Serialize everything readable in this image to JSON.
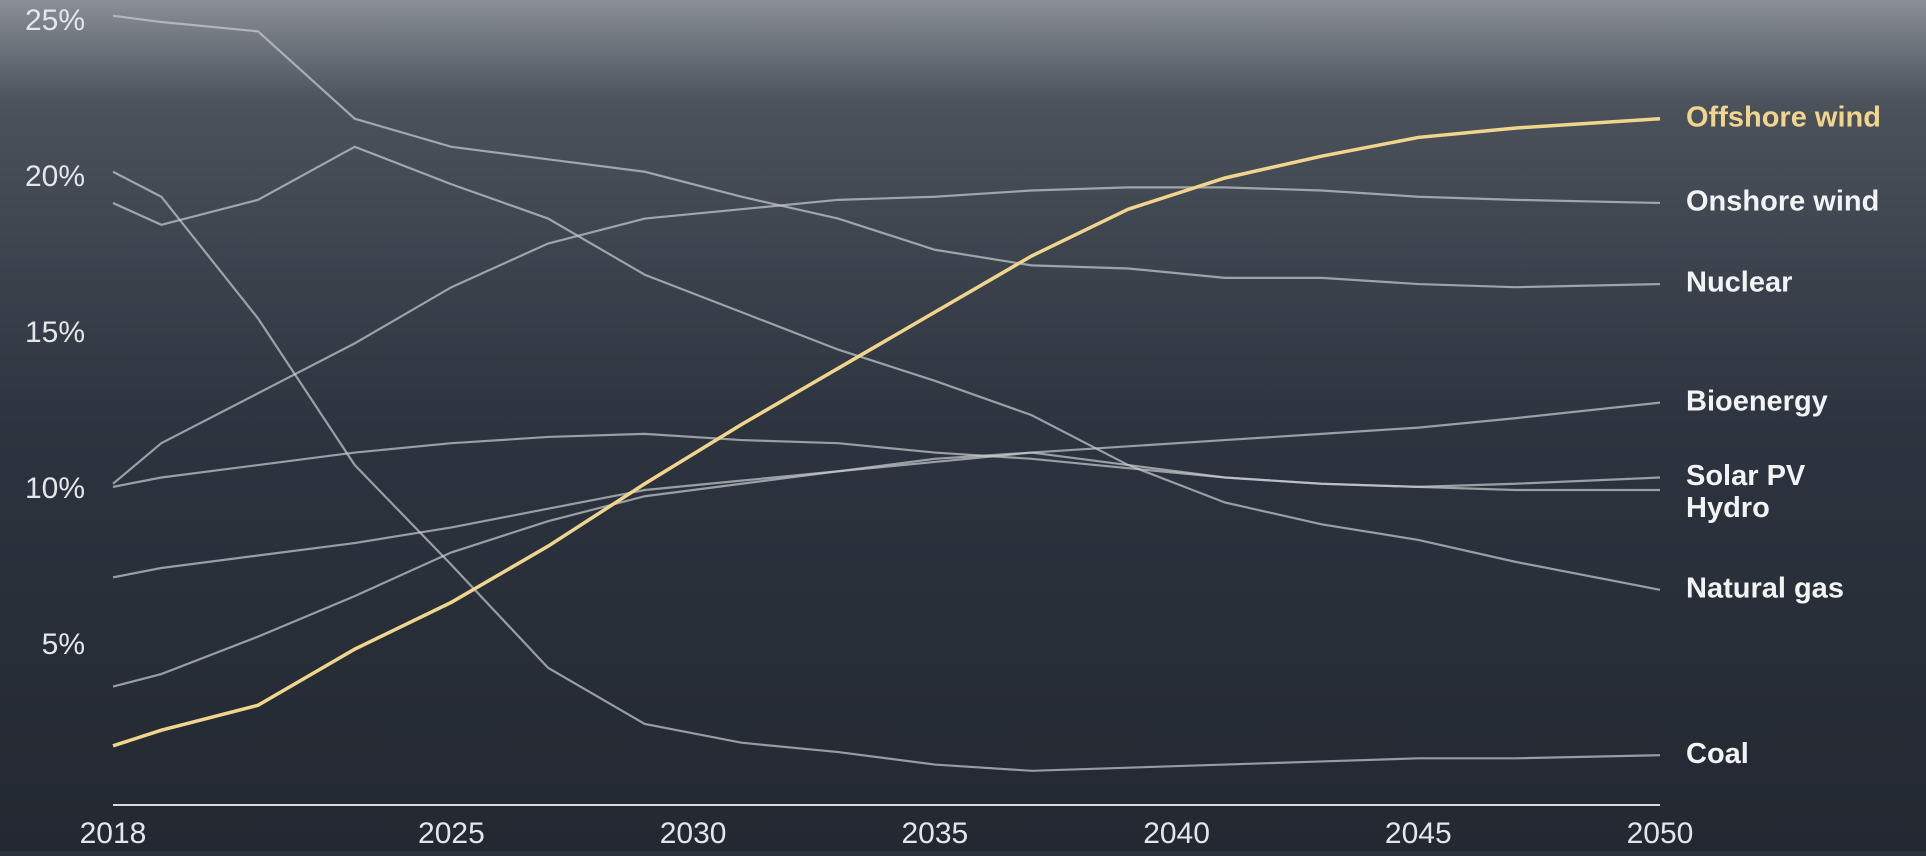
{
  "chart_data": {
    "type": "line",
    "x": [
      2018,
      2019,
      2021,
      2023,
      2025,
      2027,
      2029,
      2031,
      2033,
      2035,
      2037,
      2039,
      2041,
      2043,
      2045,
      2047,
      2050
    ],
    "xlim": [
      2018,
      2050
    ],
    "xticks": [
      2018,
      2025,
      2030,
      2035,
      2040,
      2045,
      2050
    ],
    "ylim": [
      0,
      25
    ],
    "yticks": [
      {
        "value": 5,
        "label": "5%"
      },
      {
        "value": 10,
        "label": "10%"
      },
      {
        "value": 15,
        "label": "15%"
      },
      {
        "value": 20,
        "label": "20%"
      },
      {
        "value": 25,
        "label": "25%"
      }
    ],
    "series": [
      {
        "name": "Offshore wind",
        "color": "#f2d58c",
        "values": [
          1.8,
          2.3,
          3.1,
          4.9,
          6.4,
          8.2,
          10.2,
          12.1,
          13.9,
          15.7,
          17.5,
          19.0,
          20.0,
          20.7,
          21.3,
          21.6,
          21.9
        ]
      },
      {
        "name": "Onshore wind",
        "color": "#c9ccd2",
        "values": [
          10.2,
          11.5,
          13.1,
          14.7,
          16.5,
          17.9,
          18.7,
          19.0,
          19.3,
          19.4,
          19.6,
          19.7,
          19.7,
          19.6,
          19.4,
          19.3,
          19.2
        ]
      },
      {
        "name": "Nuclear",
        "color": "#c9ccd2",
        "values": [
          25.2,
          25.0,
          24.7,
          21.9,
          21.0,
          20.6,
          20.2,
          19.4,
          18.7,
          17.7,
          17.2,
          17.1,
          16.8,
          16.8,
          16.6,
          16.5,
          16.6
        ]
      },
      {
        "name": "Bioenergy",
        "color": "#c9ccd2",
        "values": [
          7.2,
          7.5,
          7.9,
          8.3,
          8.8,
          9.4,
          10.0,
          10.3,
          10.6,
          10.9,
          11.2,
          11.4,
          11.6,
          11.8,
          12.0,
          12.3,
          12.8
        ]
      },
      {
        "name": "Solar PV",
        "color": "#c9ccd2",
        "values": [
          3.7,
          4.1,
          5.3,
          6.6,
          8.0,
          9.0,
          9.8,
          10.2,
          10.6,
          11.0,
          11.2,
          10.8,
          10.4,
          10.2,
          10.1,
          10.2,
          10.4
        ]
      },
      {
        "name": "Hydro",
        "color": "#c9ccd2",
        "values": [
          10.1,
          10.4,
          10.8,
          11.2,
          11.5,
          11.7,
          11.8,
          11.6,
          11.5,
          11.2,
          11.0,
          10.7,
          10.4,
          10.2,
          10.1,
          10.0,
          10.0
        ]
      },
      {
        "name": "Natural gas",
        "color": "#c9ccd2",
        "values": [
          19.2,
          18.5,
          19.3,
          21.0,
          19.8,
          18.7,
          16.9,
          15.7,
          14.5,
          13.5,
          12.4,
          10.8,
          9.6,
          8.9,
          8.4,
          7.7,
          6.8
        ]
      },
      {
        "name": "Coal",
        "color": "#c9ccd2",
        "values": [
          20.2,
          19.4,
          15.5,
          10.8,
          7.6,
          4.3,
          2.5,
          1.9,
          1.6,
          1.2,
          1.0,
          1.1,
          1.2,
          1.3,
          1.4,
          1.4,
          1.5
        ]
      }
    ]
  }
}
